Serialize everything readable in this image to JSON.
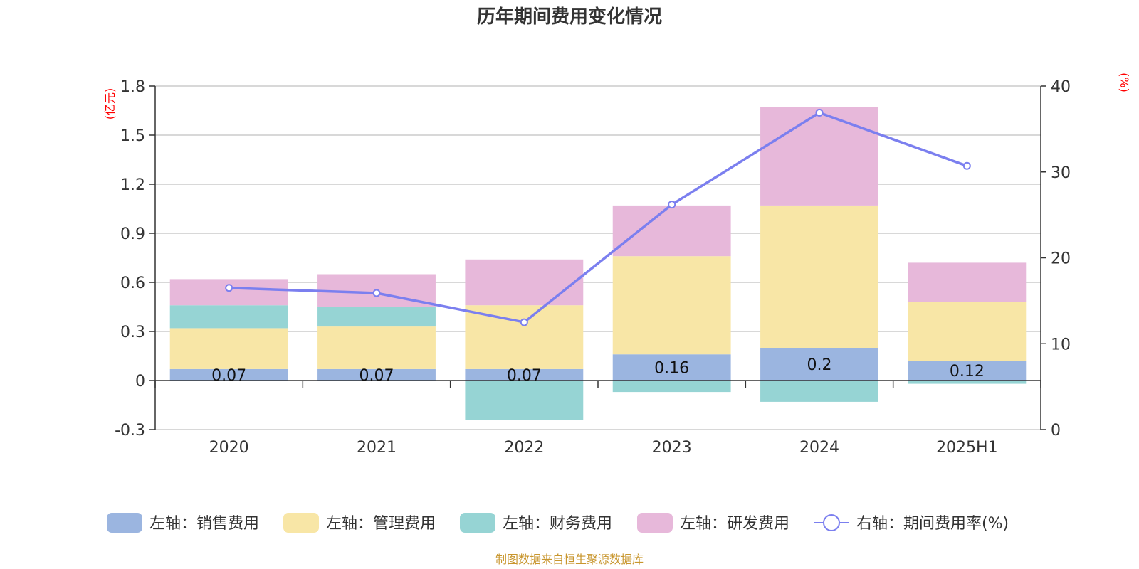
{
  "chart_data": {
    "type": "bar",
    "title": "历年期间费用变化情况",
    "categories": [
      "2020",
      "2021",
      "2022",
      "2023",
      "2024",
      "2025H1"
    ],
    "stacked": true,
    "left_axis": {
      "unit": "(亿元)",
      "ylim": [
        -0.3,
        1.8
      ],
      "ticks": [
        "-0.3",
        "0",
        "0.3",
        "0.6",
        "0.9",
        "1.2",
        "1.5",
        "1.8"
      ]
    },
    "right_axis": {
      "unit": "(%)",
      "ylim": [
        0,
        40
      ],
      "ticks": [
        "0",
        "10",
        "20",
        "30",
        "40"
      ]
    },
    "grid": true,
    "legend_position": "bottom",
    "series": [
      {
        "name": "左轴：销售费用",
        "axis": "left",
        "type": "bar",
        "color": "#9bb5e0",
        "values": [
          0.07,
          0.07,
          0.07,
          0.16,
          0.2,
          0.12
        ],
        "labels": [
          "0.07",
          "0.07",
          "0.07",
          "0.16",
          "0.2",
          "0.12"
        ]
      },
      {
        "name": "左轴：管理费用",
        "axis": "left",
        "type": "bar",
        "color": "#f8e6a6",
        "values": [
          0.25,
          0.26,
          0.39,
          0.6,
          0.87,
          0.36
        ]
      },
      {
        "name": "左轴：财务费用",
        "axis": "left",
        "type": "bar",
        "color": "#96d4d4",
        "values": [
          0.14,
          0.12,
          -0.24,
          -0.07,
          -0.13,
          -0.02
        ]
      },
      {
        "name": "左轴：研发费用",
        "axis": "left",
        "type": "bar",
        "color": "#e7b8da",
        "values": [
          0.16,
          0.2,
          0.28,
          0.31,
          0.6,
          0.24
        ]
      },
      {
        "name": "右轴：期间费用率(%)",
        "axis": "right",
        "type": "line",
        "color": "#7b7fef",
        "values": [
          16.5,
          15.9,
          12.5,
          26.2,
          36.9,
          30.7
        ]
      }
    ]
  },
  "source": "制图数据来自恒生聚源数据库"
}
